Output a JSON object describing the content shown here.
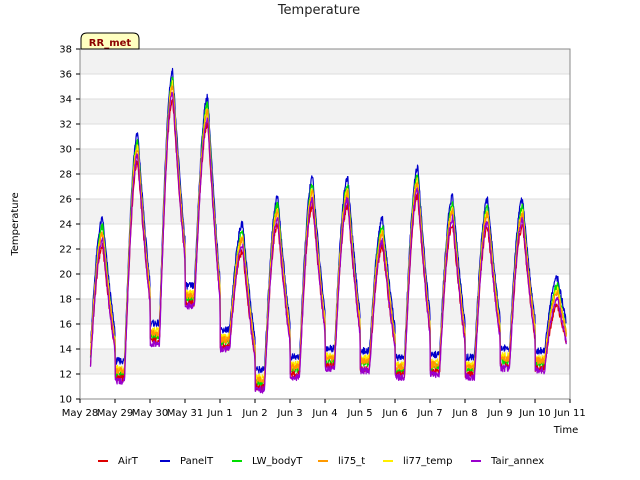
{
  "chart_data": {
    "type": "line",
    "title": "Temperature",
    "xlabel": "Time",
    "ylabel": "Temperature",
    "badge": "RR_met",
    "ylim": [
      10,
      38
    ],
    "yticks": [
      10,
      12,
      14,
      16,
      18,
      20,
      22,
      24,
      26,
      28,
      30,
      32,
      34,
      36,
      38
    ],
    "xlim": [
      0,
      14
    ],
    "xticks": [
      0,
      1,
      2,
      3,
      4,
      5,
      6,
      7,
      8,
      9,
      10,
      11,
      12,
      13,
      14
    ],
    "xtick_labels": [
      "May 28",
      "May 29",
      "May 30",
      "May 31",
      "Jun 1",
      "Jun 2",
      "Jun 3",
      "Jun 4",
      "Jun 5",
      "Jun 6",
      "Jun 7",
      "Jun 8",
      "Jun 9",
      "Jun 10",
      "Jun 11"
    ],
    "grid": true,
    "legend_position": "bottom",
    "x_start": 0.3,
    "x_end": 13.9,
    "peak_hour": 0.65,
    "daily_extremes": [
      {
        "min": 11.5,
        "max": 22.2
      },
      {
        "min": 11.5,
        "max": 29.0
      },
      {
        "min": 14.5,
        "max": 34.0
      },
      {
        "min": 17.5,
        "max": 32.0
      },
      {
        "min": 14.0,
        "max": 21.8
      },
      {
        "min": 10.8,
        "max": 24.0
      },
      {
        "min": 11.8,
        "max": 25.5
      },
      {
        "min": 12.5,
        "max": 25.5
      },
      {
        "min": 12.3,
        "max": 22.2
      },
      {
        "min": 11.8,
        "max": 26.3
      },
      {
        "min": 12.0,
        "max": 24.0
      },
      {
        "min": 11.8,
        "max": 23.8
      },
      {
        "min": 12.5,
        "max": 23.8
      },
      {
        "min": 12.3,
        "max": 17.5
      }
    ],
    "series": [
      {
        "name": "AirT",
        "color": "#dd0000",
        "min_offset": 0.0,
        "max_offset": 0.0
      },
      {
        "name": "PanelT",
        "color": "#0000cc",
        "min_offset": 1.4,
        "max_offset": 2.2
      },
      {
        "name": "LW_bodyT",
        "color": "#00dd00",
        "min_offset": 0.4,
        "max_offset": 1.6
      },
      {
        "name": "li75_t",
        "color": "#ff9900",
        "min_offset": 0.6,
        "max_offset": 1.0
      },
      {
        "name": "li77_temp",
        "color": "#ffee00",
        "min_offset": 0.8,
        "max_offset": 1.2
      },
      {
        "name": "Tair_annex",
        "color": "#9900cc",
        "min_offset": -0.2,
        "max_offset": 0.5
      }
    ]
  }
}
